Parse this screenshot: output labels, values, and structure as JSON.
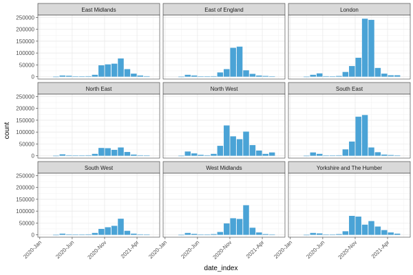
{
  "chart_data": {
    "type": "bar",
    "xlabel": "date_index",
    "ylabel": "count",
    "ylim": [
      0,
      260000
    ],
    "y_ticks": [
      0,
      50000,
      100000,
      150000,
      200000,
      250000
    ],
    "y_tick_labels": [
      "0",
      "50000",
      "100000",
      "150000",
      "200000",
      "250000"
    ],
    "x_ticks": [
      "2020-Jan",
      "2020-Jun",
      "2020-Nov",
      "2021-Apr"
    ],
    "x_range_months": [
      "2020-Jan",
      "2021-Jun"
    ],
    "bin_months": [
      "2020-Mar",
      "2020-Apr",
      "2020-May",
      "2020-Jun",
      "2020-Jul",
      "2020-Aug",
      "2020-Sep",
      "2020-Oct",
      "2020-Nov",
      "2020-Dec",
      "2021-Jan",
      "2021-Feb",
      "2021-Mar",
      "2021-Apr",
      "2021-May"
    ],
    "bar_color": "#4aa3d6",
    "panel_bg": "#ffffff",
    "strip_bg": "#d9d9d9",
    "grid": true,
    "layout": {
      "rows": 3,
      "cols": 3
    },
    "panels": [
      {
        "name": "East Midlands",
        "values": [
          0,
          5000,
          4000,
          1000,
          1000,
          2000,
          8000,
          48000,
          52000,
          55000,
          77000,
          32000,
          13000,
          5000,
          2000
        ]
      },
      {
        "name": "East of England",
        "values": [
          0,
          8000,
          5000,
          1000,
          1000,
          2000,
          18000,
          32000,
          122000,
          127000,
          27000,
          12000,
          5000,
          3000,
          1000
        ]
      },
      {
        "name": "London",
        "values": [
          0,
          8000,
          14000,
          2000,
          1000,
          3000,
          20000,
          45000,
          80000,
          245000,
          240000,
          37000,
          13000,
          6000,
          6000
        ]
      },
      {
        "name": "North East",
        "values": [
          0,
          6000,
          2000,
          1000,
          1000,
          2000,
          8000,
          33000,
          32000,
          25000,
          35000,
          16000,
          5000,
          2000,
          1000
        ]
      },
      {
        "name": "North West",
        "values": [
          0,
          18000,
          10000,
          4000,
          2000,
          8000,
          42000,
          128000,
          82000,
          70000,
          102000,
          45000,
          22000,
          8000,
          14000
        ]
      },
      {
        "name": "South East",
        "values": [
          0,
          14000,
          8000,
          1000,
          1000,
          2000,
          27000,
          60000,
          165000,
          172000,
          35000,
          15000,
          5000,
          3000,
          1000
        ]
      },
      {
        "name": "South West",
        "values": [
          0,
          5000,
          2000,
          1000,
          1000,
          2000,
          8000,
          25000,
          32000,
          38000,
          68000,
          17000,
          5000,
          2000,
          1000
        ]
      },
      {
        "name": "West Midlands",
        "values": [
          0,
          8000,
          4000,
          1000,
          1000,
          3000,
          12000,
          48000,
          70000,
          67000,
          125000,
          30000,
          10000,
          3000,
          1000
        ]
      },
      {
        "name": "Yorkshire and The Humber",
        "values": [
          0,
          8000,
          6000,
          1000,
          1000,
          3000,
          15000,
          80000,
          77000,
          43000,
          58000,
          35000,
          20000,
          10000,
          5000
        ]
      }
    ]
  }
}
